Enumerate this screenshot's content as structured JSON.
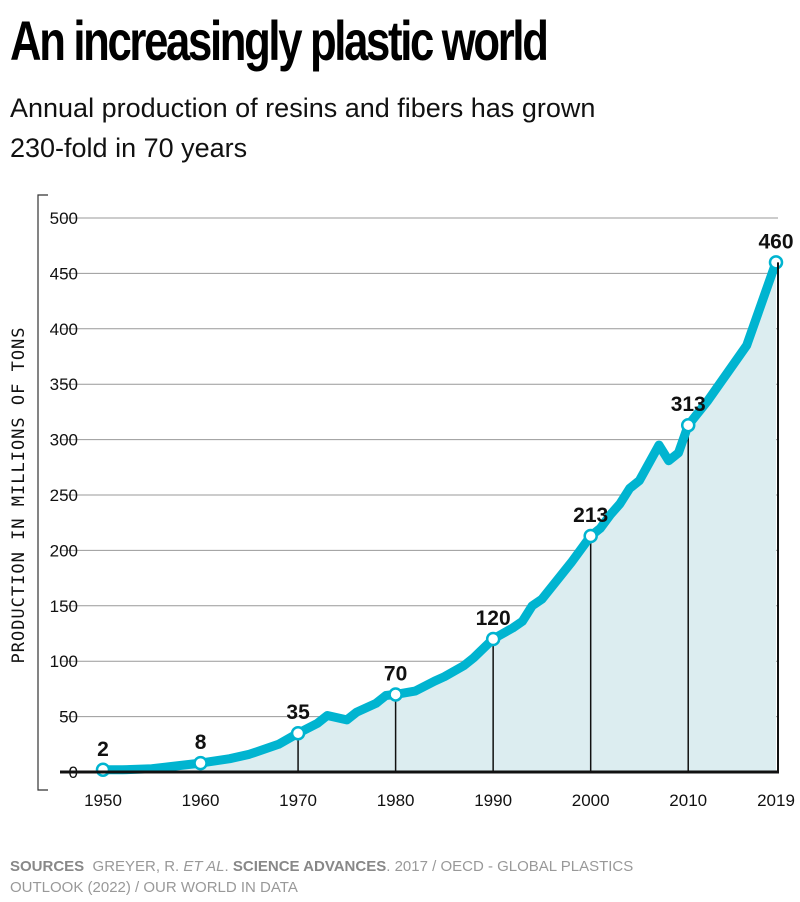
{
  "header": {
    "title": "An increasingly plastic world",
    "subtitle": "Annual production of resins and fibers has grown 230-fold in 70 years"
  },
  "footer": {
    "sources_label": "SOURCES",
    "part1": "GREYER, R.",
    "etal": "ET AL",
    "part2": ".",
    "journal": "SCIENCE ADVANCES",
    "part3": ". 2017 / OECD - GLOBAL PLASTICS OUTLOOK (2022) / OUR WORLD IN DATA"
  },
  "colors": {
    "line": "#00b4d0",
    "fill": "#dcedf0",
    "grid": "#999999"
  },
  "chart_data": {
    "type": "area",
    "title": "An increasingly plastic world",
    "xlabel": "",
    "ylabel": "PRODUCTION IN MILLIONS OF TONS",
    "xlim": [
      1950,
      2019
    ],
    "ylim": [
      0,
      500
    ],
    "yticks": [
      0,
      50,
      100,
      150,
      200,
      250,
      300,
      350,
      400,
      450,
      500
    ],
    "xticks": [
      1950,
      1960,
      1970,
      1980,
      1990,
      2000,
      2010,
      2019
    ],
    "grid": true,
    "x": [
      1950,
      1952,
      1955,
      1958,
      1960,
      1963,
      1965,
      1968,
      1970,
      1972,
      1973,
      1975,
      1976,
      1978,
      1979,
      1980,
      1982,
      1984,
      1985,
      1987,
      1988,
      1990,
      1992,
      1993,
      1994,
      1995,
      1997,
      1998,
      2000,
      2001,
      2002,
      2003,
      2004,
      2005,
      2007,
      2008,
      2009,
      2010,
      2012,
      2014,
      2016,
      2019
    ],
    "values": [
      2,
      2,
      3,
      6,
      8,
      12,
      16,
      25,
      35,
      44,
      51,
      47,
      54,
      62,
      69,
      70,
      73,
      82,
      86,
      96,
      103,
      120,
      130,
      136,
      150,
      156,
      178,
      189,
      213,
      220,
      232,
      242,
      256,
      263,
      295,
      281,
      288,
      313,
      335,
      360,
      385,
      460
    ],
    "annotations": [
      {
        "x": 1950,
        "y": 2,
        "label": "2"
      },
      {
        "x": 1960,
        "y": 8,
        "label": "8"
      },
      {
        "x": 1970,
        "y": 35,
        "label": "35"
      },
      {
        "x": 1980,
        "y": 70,
        "label": "70"
      },
      {
        "x": 1990,
        "y": 120,
        "label": "120"
      },
      {
        "x": 2000,
        "y": 213,
        "label": "213"
      },
      {
        "x": 2010,
        "y": 313,
        "label": "313"
      },
      {
        "x": 2019,
        "y": 460,
        "label": "460"
      }
    ]
  }
}
